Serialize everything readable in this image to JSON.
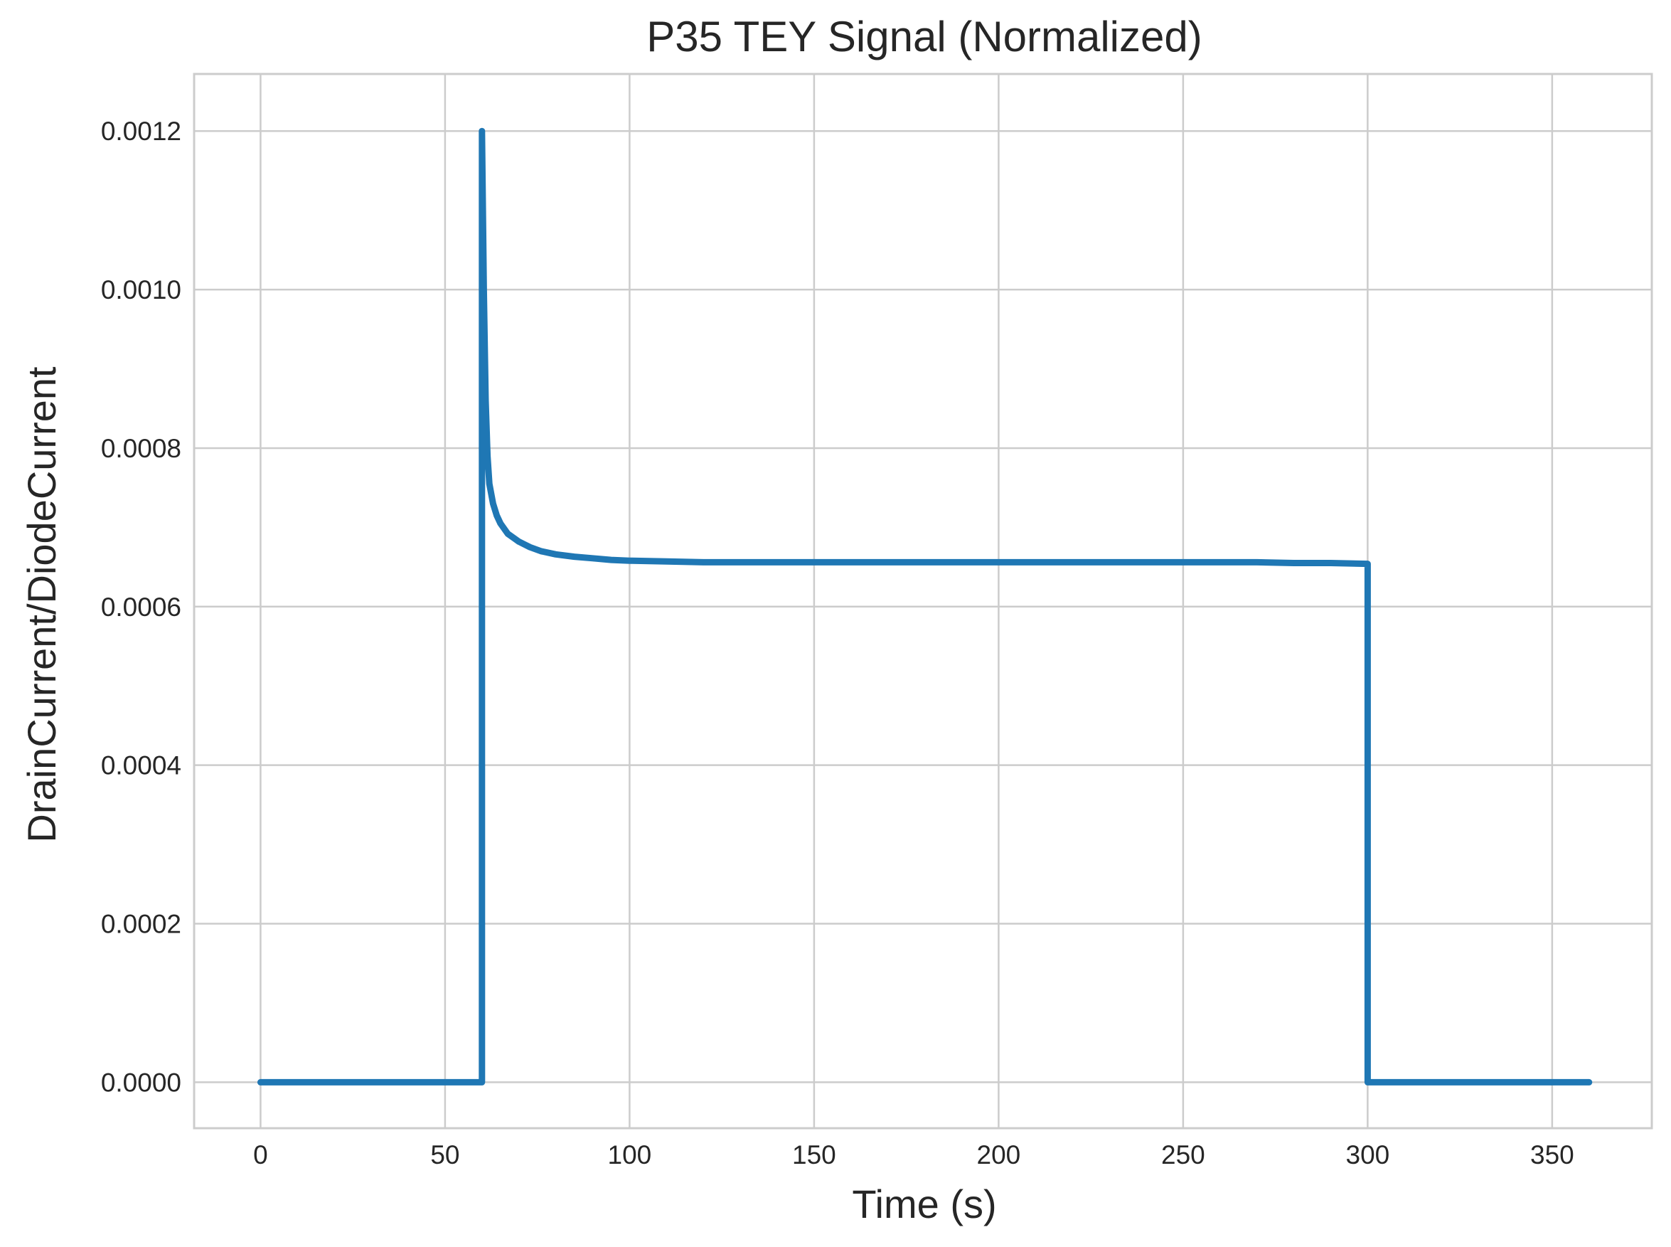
{
  "chart_data": {
    "type": "line",
    "title": "P35 TEY Signal (Normalized)",
    "xlabel": "Time (s)",
    "ylabel": "DrainCurrent/DiodeCurrent",
    "xlim": [
      -18,
      377
    ],
    "ylim": [
      -5.8e-05,
      0.001272
    ],
    "x_ticks": [
      0,
      50,
      100,
      150,
      200,
      250,
      300,
      350
    ],
    "x_tick_labels": [
      "0",
      "50",
      "100",
      "150",
      "200",
      "250",
      "300",
      "350"
    ],
    "y_ticks": [
      0,
      0.0002,
      0.0004,
      0.0006,
      0.0008,
      0.001,
      0.0012
    ],
    "y_tick_labels": [
      "0.0000",
      "0.0002",
      "0.0004",
      "0.0006",
      "0.0008",
      "0.0010",
      "0.0012"
    ],
    "grid": true,
    "legend": false,
    "series": [
      {
        "color": "#1f77b4",
        "x": [
          0,
          60,
          60,
          60.5,
          61,
          61.5,
          62,
          63,
          64,
          65,
          67,
          70,
          73,
          76,
          80,
          85,
          90,
          95,
          100,
          110,
          120,
          130,
          140,
          150,
          160,
          170,
          180,
          190,
          200,
          210,
          220,
          230,
          240,
          250,
          260,
          270,
          280,
          290,
          300,
          300,
          300,
          360
        ],
        "y": [
          0.0,
          0.0,
          0.0012,
          0.001,
          0.00086,
          0.00079,
          0.000755,
          0.00073,
          0.000715,
          0.000705,
          0.000692,
          0.000682,
          0.000675,
          0.00067,
          0.000666,
          0.000663,
          0.000661,
          0.000659,
          0.000658,
          0.000657,
          0.000656,
          0.000656,
          0.000656,
          0.000656,
          0.000656,
          0.000656,
          0.000656,
          0.000656,
          0.000656,
          0.000656,
          0.000656,
          0.000656,
          0.000656,
          0.000656,
          0.000656,
          0.000656,
          0.000655,
          0.000655,
          0.000654,
          0.00033,
          0.0,
          0.0
        ]
      }
    ]
  }
}
